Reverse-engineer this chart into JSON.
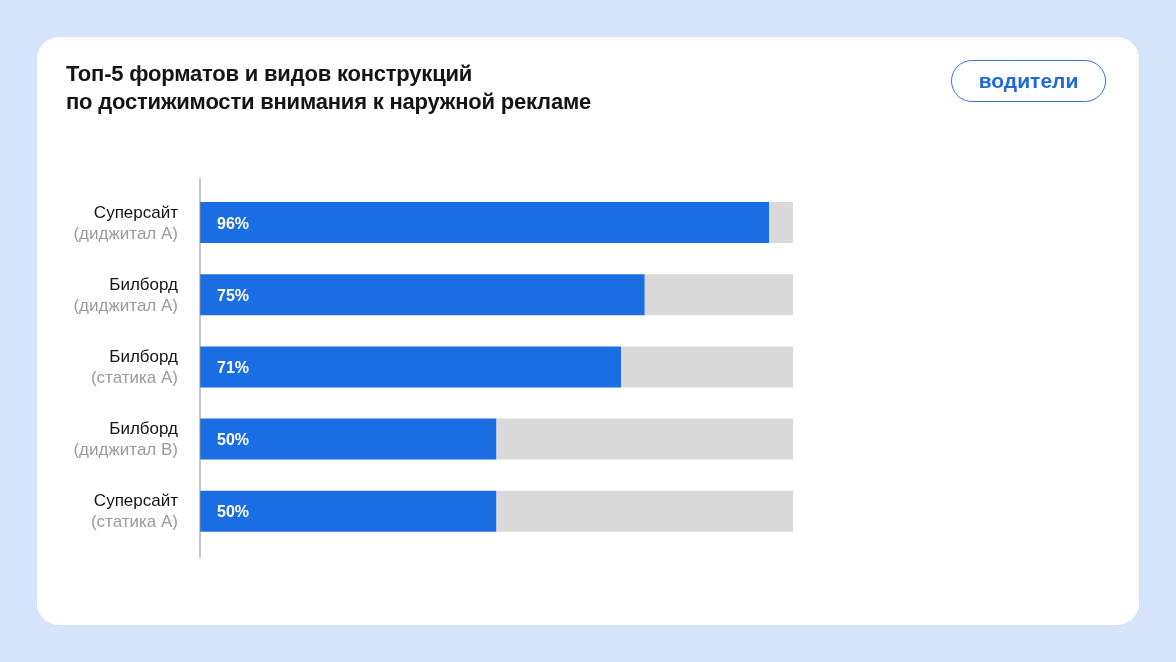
{
  "chart_data": {
    "type": "bar",
    "orientation": "horizontal",
    "stacked": true,
    "title": "Топ-5 форматов и видов конструкций\nпо достижимости внимания к наружной рекламе",
    "annotations": [
      "водители"
    ],
    "categories": [
      "Суперсайт\n(диджитал A)",
      "Билборд\n(диджитал A)",
      "Билборд\n(статика A)",
      "Билборд\n(диджитал B)",
      "Суперсайт\n(статика A)"
    ],
    "series": [
      {
        "color": "#1b6de4",
        "values": [
          96,
          75,
          71,
          50,
          50
        ],
        "value_labels": [
          "96%",
          "75%",
          "71%",
          "50%",
          "50%"
        ]
      },
      {
        "color": "#d9d9d9",
        "values": [
          4,
          25,
          29,
          50,
          50
        ]
      }
    ],
    "xlim": [
      0,
      100
    ],
    "tick_labels": "y"
  }
}
